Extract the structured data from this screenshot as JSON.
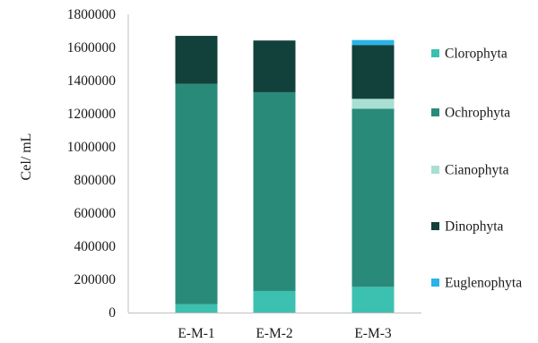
{
  "chart_data": {
    "type": "bar",
    "stacked": true,
    "title": "",
    "xlabel": "",
    "ylabel": "Cel/ mL",
    "ylim": [
      0,
      1800000
    ],
    "yticks": [
      "0",
      "200000",
      "400000",
      "600000",
      "800000",
      "1000000",
      "1200000",
      "1400000",
      "1600000",
      "1800000"
    ],
    "grid": false,
    "legend_position": "right",
    "categories": [
      "E-M-1",
      "E-M-2",
      "E-M-3"
    ],
    "series": [
      {
        "name": "Clorophyta",
        "color": "#3cc0b0",
        "values": [
          50000,
          130000,
          155000
        ]
      },
      {
        "name": "Ochrophyta",
        "color": "#2a8a7a",
        "values": [
          1330000,
          1200000,
          1075000
        ]
      },
      {
        "name": "Cianophyta",
        "color": "#a8dfd2",
        "values": [
          0,
          0,
          60000
        ]
      },
      {
        "name": "Dinophyta",
        "color": "#12403a",
        "values": [
          290000,
          312000,
          325000
        ]
      },
      {
        "name": "Euglenophyta",
        "color": "#2ab3e8",
        "values": [
          0,
          0,
          30000
        ]
      }
    ]
  }
}
